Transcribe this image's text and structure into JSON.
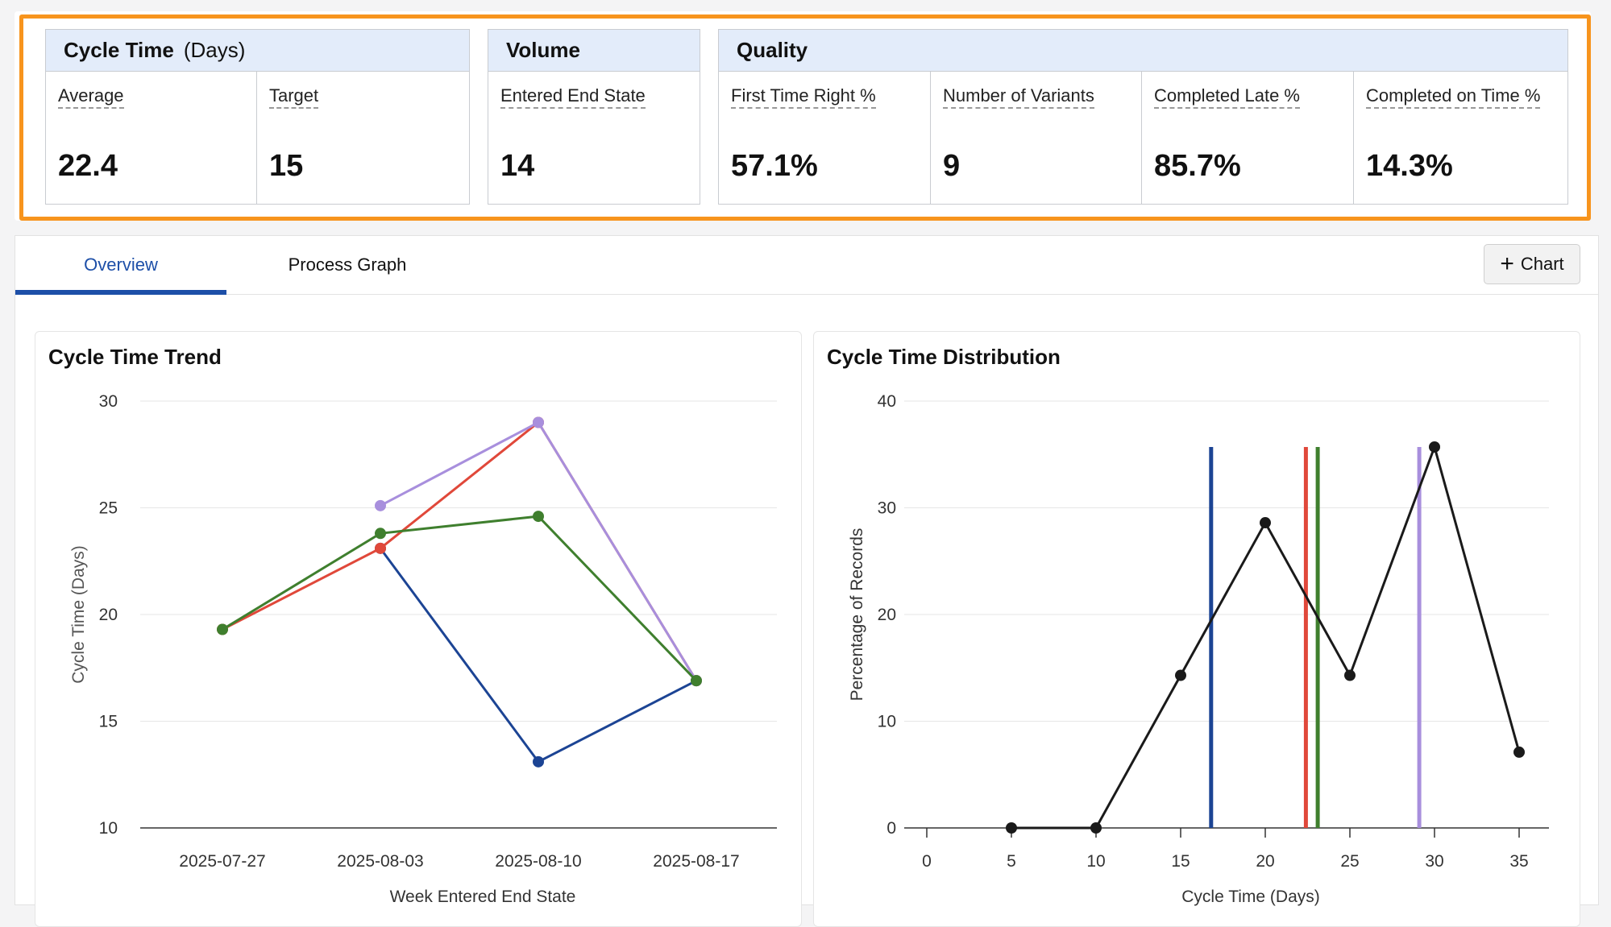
{
  "kpi": {
    "cycle_time": {
      "title": "Cycle Time",
      "unit": "(Days)",
      "metrics": [
        {
          "label": "Average",
          "value": "22.4"
        },
        {
          "label": "Target",
          "value": "15"
        }
      ]
    },
    "volume": {
      "title": "Volume",
      "metrics": [
        {
          "label": "Entered End State",
          "value": "14"
        }
      ]
    },
    "quality": {
      "title": "Quality",
      "metrics": [
        {
          "label": "First Time Right %",
          "value": "57.1%"
        },
        {
          "label": "Number of Variants",
          "value": "9"
        },
        {
          "label": "Completed Late %",
          "value": "85.7%"
        },
        {
          "label": "Completed on Time %",
          "value": "14.3%"
        }
      ]
    },
    "highlight_color": "#f7941d"
  },
  "tabs": {
    "overview": "Overview",
    "process_graph": "Process Graph",
    "active": "overview"
  },
  "toolbar": {
    "chart_button": "Chart",
    "chart_icon": "plus-icon"
  },
  "chart_data": [
    {
      "type": "line",
      "title": "Cycle Time Trend",
      "ylabel": "Cycle Time (Days)",
      "xlabel": "Week Entered End State",
      "categories": [
        "2025-07-27",
        "2025-08-03",
        "2025-08-10",
        "2025-08-17"
      ],
      "ylim": [
        10,
        30
      ],
      "yticks": [
        10,
        15,
        20,
        25,
        30
      ],
      "grid": true,
      "series": [
        {
          "color": "#1c4494",
          "values": [
            null,
            23.1,
            13.1,
            16.9
          ]
        },
        {
          "color": "#e0483a",
          "values": [
            19.3,
            23.1,
            29.0,
            16.9
          ]
        },
        {
          "color": "#a88fdd",
          "values": [
            null,
            25.1,
            29.0,
            16.9
          ]
        },
        {
          "color": "#3f7f2e",
          "values": [
            19.3,
            23.8,
            24.6,
            16.9
          ]
        }
      ]
    },
    {
      "type": "line",
      "title": "Cycle Time Distribution",
      "ylabel": "Percentage of Records",
      "xlabel": "Cycle Time (Days)",
      "ylim": [
        0,
        40
      ],
      "yticks": [
        0,
        10,
        20,
        30,
        40
      ],
      "xlim": [
        0,
        35
      ],
      "xticks": [
        0,
        5,
        10,
        15,
        20,
        25,
        30,
        35
      ],
      "grid": true,
      "series": [
        {
          "color": "#1a1a1a",
          "x": [
            5,
            10,
            15,
            20,
            25,
            30,
            35
          ],
          "values": [
            0,
            0,
            14.3,
            28.6,
            14.3,
            35.7,
            7.1
          ]
        }
      ],
      "reference_lines": [
        {
          "x": 16.8,
          "color": "#1c4494"
        },
        {
          "x": 22.4,
          "color": "#e0483a"
        },
        {
          "x": 23.1,
          "color": "#3f7f2e"
        },
        {
          "x": 29.1,
          "color": "#a88fdd"
        }
      ],
      "reference_line_top": 35.7
    }
  ]
}
